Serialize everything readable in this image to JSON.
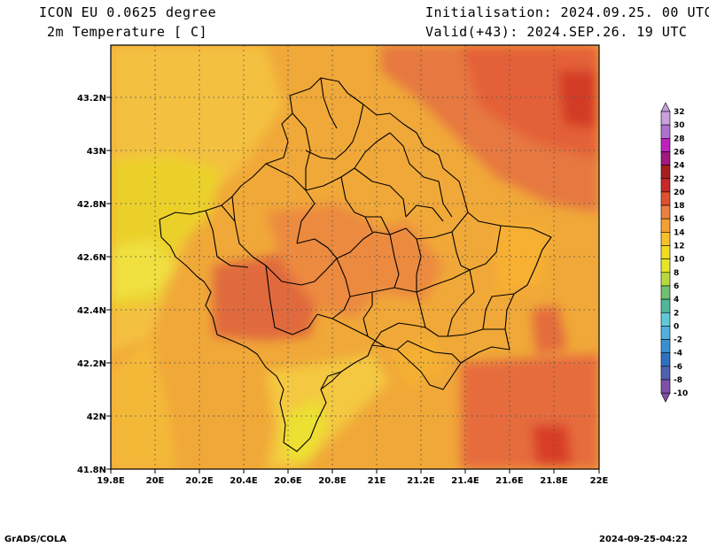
{
  "header": {
    "model": "ICON EU 0.0625 degree",
    "variable": "2m Temperature [ C]",
    "init": "Initialisation: 2024.09.25. 00 UTC",
    "valid": "Valid(+43): 2024.SEP.26. 19 UTC"
  },
  "footer": {
    "left": "GrADS/COLA",
    "right": "2024-09-25-04:22"
  },
  "map": {
    "lon_labels": [
      "19.8E",
      "20E",
      "20.2E",
      "20.4E",
      "20.6E",
      "20.8E",
      "21E",
      "21.2E",
      "21.4E",
      "21.6E",
      "21.8E",
      "22E"
    ],
    "lat_labels": [
      "43.2N",
      "43N",
      "42.8N",
      "42.6N",
      "42.4N",
      "42.2N",
      "42N",
      "41.8N"
    ]
  },
  "colorbar": {
    "labels": [
      "32",
      "30",
      "28",
      "26",
      "24",
      "22",
      "20",
      "18",
      "16",
      "14",
      "12",
      "10",
      "8",
      "6",
      "4",
      "2",
      "0",
      "-2",
      "-4",
      "-6",
      "-8",
      "-10"
    ],
    "colors": [
      "#c8a0dc",
      "#b070d0",
      "#c020c0",
      "#a01880",
      "#a81e1e",
      "#c82828",
      "#e05030",
      "#ec8040",
      "#f4a030",
      "#f8c028",
      "#f0dc20",
      "#e6e628",
      "#b8d840",
      "#70c070",
      "#50b898",
      "#60c8d8",
      "#50b0e0",
      "#3890d0",
      "#3070c0",
      "#5060b0",
      "#8050a8"
    ]
  }
}
